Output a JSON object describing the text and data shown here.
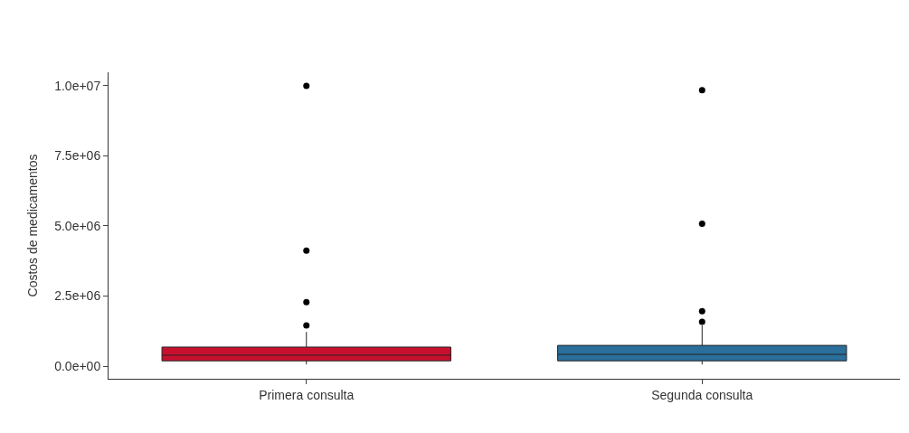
{
  "chart_data": {
    "type": "box",
    "ylabel": "Costos de medicamentos",
    "categories": [
      "Primera consulta",
      "Segunda consulta"
    ],
    "colors": [
      "#c8102e",
      "#2a6e9b"
    ],
    "boxes": [
      {
        "low": 60000,
        "q1": 190000,
        "median": 390000,
        "q3": 680000,
        "high": 1220000,
        "outliers": [
          1450000,
          2280000,
          4120000,
          10000000
        ]
      },
      {
        "low": 60000,
        "q1": 190000,
        "median": 420000,
        "q3": 740000,
        "high": 1450000,
        "outliers": [
          1580000,
          1960000,
          5080000,
          9840000
        ]
      }
    ],
    "ylim": [
      -450000,
      10480000
    ],
    "yticks": [
      {
        "value": 0,
        "label": "0.0e+00"
      },
      {
        "value": 2500000,
        "label": "2.5e+06"
      },
      {
        "value": 5000000,
        "label": "5.0e+06"
      },
      {
        "value": 7500000,
        "label": "7.5e+06"
      },
      {
        "value": 10000000,
        "label": "1.0e+07"
      }
    ],
    "marker": "circle"
  }
}
